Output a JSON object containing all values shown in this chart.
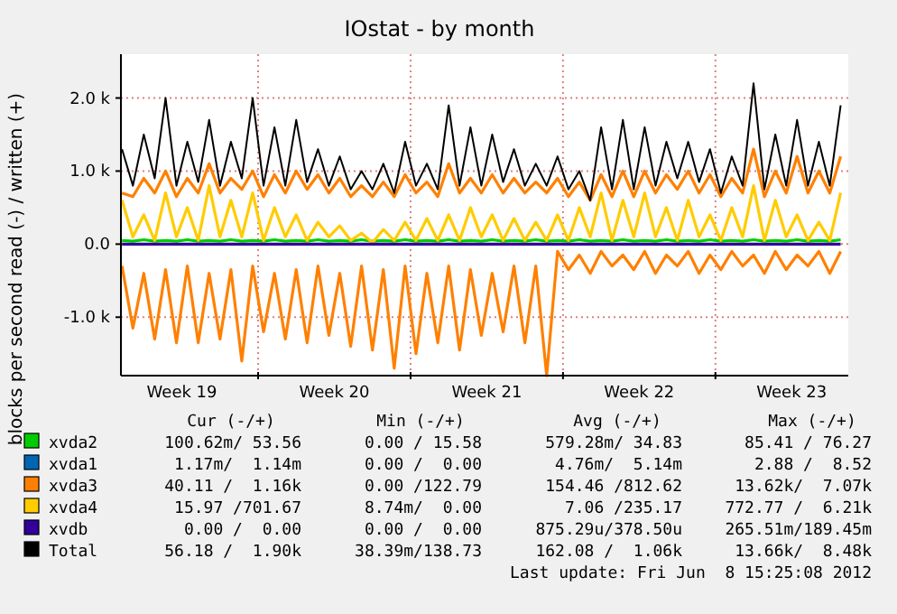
{
  "chart_data": {
    "type": "line",
    "title": "IOstat - by month",
    "ylabel": "blocks per second read (-) / written (+)",
    "x": [
      "2012-05-07T18:00",
      "2012-05-08T06:00",
      "2012-05-08T18:00",
      "2012-05-09T06:00",
      "2012-05-09T18:00",
      "2012-05-10T06:00",
      "2012-05-10T18:00",
      "2012-05-11T06:00",
      "2012-05-11T18:00",
      "2012-05-12T06:00",
      "2012-05-12T18:00",
      "2012-05-13T06:00",
      "2012-05-13T18:00",
      "2012-05-14T06:00",
      "2012-05-14T18:00",
      "2012-05-15T06:00",
      "2012-05-15T18:00",
      "2012-05-16T06:00",
      "2012-05-16T18:00",
      "2012-05-17T06:00",
      "2012-05-17T18:00",
      "2012-05-18T06:00",
      "2012-05-18T18:00",
      "2012-05-19T06:00",
      "2012-05-19T18:00",
      "2012-05-20T06:00",
      "2012-05-20T18:00",
      "2012-05-21T06:00",
      "2012-05-21T18:00",
      "2012-05-22T06:00",
      "2012-05-22T18:00",
      "2012-05-23T06:00",
      "2012-05-23T18:00",
      "2012-05-24T06:00",
      "2012-05-24T18:00",
      "2012-05-25T06:00",
      "2012-05-25T18:00",
      "2012-05-26T06:00",
      "2012-05-26T18:00",
      "2012-05-27T06:00",
      "2012-05-27T18:00",
      "2012-05-28T06:00",
      "2012-05-28T18:00",
      "2012-05-29T06:00",
      "2012-05-29T18:00",
      "2012-05-30T06:00",
      "2012-05-30T18:00",
      "2012-05-31T06:00",
      "2012-05-31T18:00",
      "2012-06-01T06:00",
      "2012-06-01T18:00",
      "2012-06-02T06:00",
      "2012-06-02T18:00",
      "2012-06-03T06:00",
      "2012-06-03T18:00",
      "2012-06-04T06:00",
      "2012-06-04T18:00",
      "2012-06-05T06:00",
      "2012-06-05T18:00",
      "2012-06-06T06:00",
      "2012-06-06T18:00",
      "2012-06-07T06:00",
      "2012-06-07T18:00",
      "2012-06-08T06:00",
      "2012-06-08T18:00",
      "2012-06-09T06:00",
      "2012-06-09T18:00"
    ],
    "series": [
      {
        "name": "xvda2",
        "color": "#00cc00",
        "values": [
          50,
          40,
          60,
          40,
          50,
          40,
          60,
          40,
          50,
          40,
          60,
          40,
          50,
          40,
          60,
          40,
          50,
          40,
          60,
          40,
          50,
          40,
          60,
          40,
          50,
          40,
          60,
          40,
          50,
          40,
          60,
          40,
          50,
          40,
          60,
          40,
          50,
          40,
          60,
          40,
          50,
          40,
          60,
          40,
          50,
          40,
          60,
          40,
          50,
          40,
          60,
          40,
          50,
          40,
          60,
          40,
          50,
          40,
          60,
          40,
          50,
          40,
          60,
          40,
          50,
          40,
          60
        ]
      },
      {
        "name": "xvda1",
        "color": "#0066b3",
        "values": [
          null,
          null,
          null,
          null,
          null,
          null,
          null,
          null,
          null,
          null,
          null,
          null,
          null,
          null,
          null,
          null,
          null,
          null,
          null,
          null,
          null,
          null,
          null,
          null,
          null,
          null,
          null,
          null,
          null,
          null,
          null,
          null,
          null,
          null,
          null,
          null,
          null,
          null,
          null,
          null,
          null,
          null,
          null,
          null,
          null,
          null,
          null,
          null,
          null,
          null,
          null,
          null,
          null,
          null,
          null,
          null,
          null,
          null,
          null,
          null,
          null,
          null,
          null,
          null,
          null,
          null,
          null
        ]
      },
      {
        "name": "xvda3",
        "color": "#ff8000",
        "values": [
          700,
          650,
          900,
          700,
          1000,
          650,
          900,
          700,
          1100,
          700,
          900,
          750,
          1000,
          650,
          950,
          700,
          1000,
          750,
          950,
          700,
          900,
          650,
          800,
          650,
          850,
          650,
          950,
          700,
          850,
          650,
          1100,
          700,
          900,
          700,
          950,
          700,
          900,
          700,
          850,
          700,
          900,
          650,
          850,
          600,
          950,
          650,
          1000,
          650,
          1000,
          700,
          950,
          750,
          1000,
          700,
          950,
          650,
          900,
          700,
          1300,
          650,
          1000,
          700,
          1200,
          700,
          1000,
          700,
          1200
        ]
      },
      {
        "color": "#ff8000",
        "values": [
          -300,
          -1150,
          -400,
          -1300,
          -350,
          -1350,
          -300,
          -1350,
          -400,
          -1300,
          -350,
          -1600,
          -300,
          -1200,
          -400,
          -1300,
          -350,
          -1350,
          -300,
          -1250,
          -400,
          -1400,
          -300,
          -1450,
          -350,
          -1700,
          -300,
          -1500,
          -400,
          -1350,
          -300,
          -1450,
          -350,
          -1250,
          -400,
          -1200,
          -300,
          -1350,
          -300,
          -1800,
          -100,
          -350,
          -150,
          -400,
          -100,
          -300,
          -150,
          -350,
          -100,
          -400,
          -150,
          -300,
          -100,
          -400,
          -150,
          -350,
          -100,
          -300,
          -150,
          -400,
          -100,
          -350,
          -150,
          -300,
          -100,
          -400,
          -100
        ]
      },
      {
        "name": "xvda4",
        "color": "#ffcc00",
        "values": [
          600,
          100,
          400,
          50,
          700,
          100,
          500,
          50,
          800,
          100,
          600,
          100,
          700,
          50,
          500,
          100,
          400,
          50,
          300,
          100,
          250,
          50,
          150,
          20,
          200,
          50,
          300,
          50,
          350,
          50,
          400,
          50,
          500,
          100,
          400,
          50,
          350,
          50,
          300,
          50,
          400,
          50,
          500,
          100,
          700,
          50,
          600,
          100,
          700,
          100,
          500,
          50,
          600,
          100,
          400,
          50,
          500,
          100,
          800,
          50,
          600,
          100,
          400,
          50,
          300,
          50,
          700
        ]
      },
      {
        "name": "xvdb",
        "color": "#330099",
        "values": [
          0,
          0,
          0,
          0,
          0,
          0,
          0,
          0,
          0,
          0,
          0,
          0,
          0,
          0,
          0,
          0,
          0,
          0,
          0,
          0,
          0,
          0,
          0,
          0,
          0,
          0,
          0,
          0,
          0,
          0,
          0,
          0,
          0,
          0,
          0,
          0,
          0,
          0,
          0,
          0,
          0,
          0,
          0,
          0,
          0,
          0,
          0,
          0,
          0,
          0,
          0,
          0,
          0,
          0,
          0,
          0,
          0,
          0,
          0,
          0,
          0,
          0,
          0,
          0,
          0,
          0,
          0
        ]
      },
      {
        "name": "Total",
        "color": "#000000",
        "values": [
          1300,
          800,
          1500,
          900,
          2000,
          800,
          1400,
          850,
          1700,
          800,
          1400,
          900,
          2000,
          800,
          1600,
          800,
          1700,
          850,
          1300,
          800,
          1200,
          750,
          1000,
          750,
          1100,
          700,
          1400,
          800,
          1100,
          750,
          1900,
          800,
          1600,
          800,
          1500,
          850,
          1300,
          800,
          1100,
          800,
          1200,
          750,
          1000,
          600,
          1600,
          750,
          1700,
          750,
          1600,
          800,
          1400,
          900,
          1400,
          850,
          1300,
          700,
          1200,
          800,
          2200,
          750,
          1500,
          800,
          1700,
          800,
          1400,
          800,
          1900
        ]
      }
    ],
    "xlim": [
      "2012-05-07T16:48",
      "2012-06-10T02:24"
    ],
    "xticks": [
      {
        "value": "2012-05-10T12:00",
        "label": "Week 19"
      },
      {
        "value": "2012-05-14",
        "label": null
      },
      {
        "value": "2012-05-17T12:00",
        "label": "Week 20"
      },
      {
        "value": "2012-05-21",
        "label": null
      },
      {
        "value": "2012-05-24T12:00",
        "label": "Week 21"
      },
      {
        "value": "2012-05-28",
        "label": null
      },
      {
        "value": "2012-05-31T12:00",
        "label": "Week 22"
      },
      {
        "value": "2012-06-04",
        "label": null
      },
      {
        "value": "2012-06-07T12:00",
        "label": "Week 23"
      }
    ],
    "ylim": [
      -1800,
      2600
    ],
    "yticks": [
      {
        "value": -1000,
        "label": "-1.0 k"
      },
      {
        "value": 0,
        "label": "0.0"
      },
      {
        "value": 1000,
        "label": "1.0 k"
      },
      {
        "value": 2000,
        "label": "2.0 k"
      }
    ],
    "grid": true,
    "legend": "bottom",
    "annotations": [
      "Cur (-/+)",
      "Min (-/+)",
      "Avg (-/+)",
      "Max (-/+)",
      "100.62m/ 53.56",
      "0.00 / 15.58",
      "579.28m/ 34.83",
      "85.41 / 76.27",
      "1.17m/  1.14m",
      "0.00 /  0.00",
      "4.76m/  5.14m",
      "2.88 /  8.52",
      "40.11 /  1.16k",
      "0.00 /122.79",
      "154.46 /812.62",
      "13.62k/  7.07k",
      "15.97 /701.67",
      "8.74m/  0.00",
      "7.06 /235.17",
      "772.77 /  6.21k",
      "0.00 /  0.00",
      "0.00 /  0.00",
      "875.29u/378.50u",
      "265.51m/189.45m",
      "56.18 /  1.90k",
      "38.39m/138.73",
      "162.08 /  1.06k",
      "13.66k/  8.48k",
      "Last update: Fri Jun  8 15:25:08 2012"
    ]
  }
}
